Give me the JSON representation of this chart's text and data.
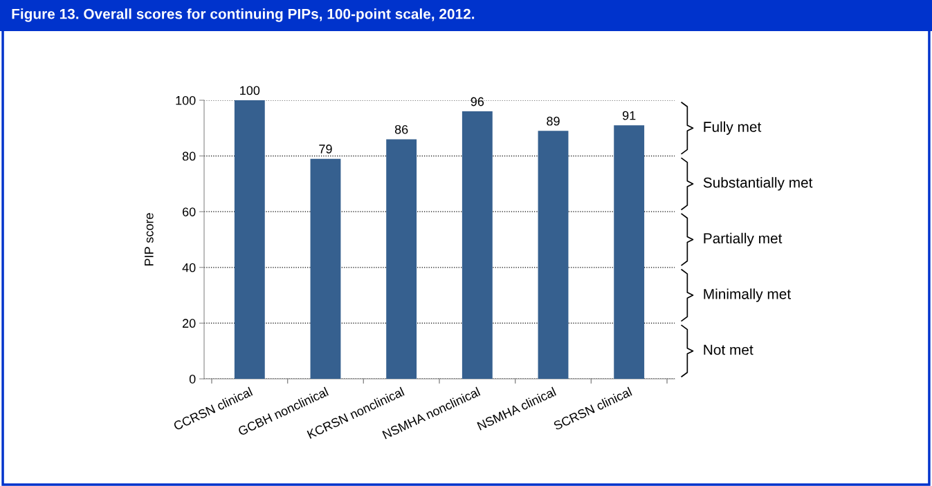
{
  "chart_data": {
    "type": "bar",
    "title": "Figure 13. Overall scores for continuing PIPs, 100-point scale, 2012.",
    "ylabel": "PIP score",
    "categories": [
      "CCRSN clinical",
      "GCBH nonclinical",
      "KCRSN nonclinical",
      "NSMHA nonclinical",
      "NSMHA clinical",
      "SCRSN clinical"
    ],
    "values": [
      100,
      79,
      86,
      96,
      89,
      91
    ],
    "color": "#36608f",
    "ylim": [
      0,
      100
    ],
    "yticks": [
      0,
      20,
      40,
      60,
      80,
      100
    ],
    "grid": "y",
    "data_labels": true,
    "annotations": [
      "Fully met",
      "Substantially met",
      "Partially met",
      "Minimally met",
      "Not met"
    ]
  }
}
